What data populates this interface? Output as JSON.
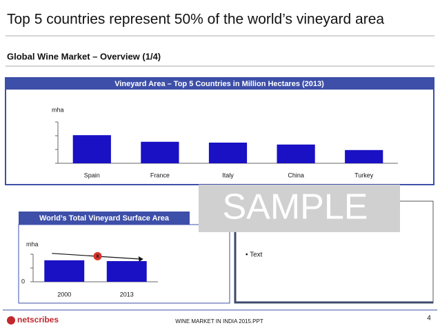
{
  "header": {
    "title": "Top 5 countries represent 50% of the world’s vineyard area",
    "subtitle": "Global Wine Market – Overview (1/4)"
  },
  "chart_data": [
    {
      "type": "bar",
      "title": "Vineyard Area – Top 5 Countries in Million Hectares (2013)",
      "y_label": "mha",
      "categories": [
        "Spain",
        "France",
        "Italy",
        "China",
        "Turkey"
      ],
      "values": [
        1.02,
        0.78,
        0.75,
        0.68,
        0.48
      ],
      "color": "#1a10c4",
      "ylim": [
        0,
        1.5
      ],
      "yticks": [
        0,
        0.5,
        1,
        1.5
      ]
    },
    {
      "type": "bar",
      "title": "World’s Total Vineyard Surface Area",
      "y_label": "mha",
      "categories": [
        "2000",
        "2013"
      ],
      "values": [
        7.8,
        7.5
      ],
      "color": "#1a10c4",
      "ylim": [
        0,
        10
      ],
      "yticks": [
        0,
        5,
        10
      ],
      "annotation": "x"
    }
  ],
  "watermark": "SAMPLE",
  "bullet_text": "• Text",
  "footer": {
    "logo": "netscribes",
    "file": "WINE MARKET IN INDIA 2015.PPT",
    "page": "4"
  }
}
